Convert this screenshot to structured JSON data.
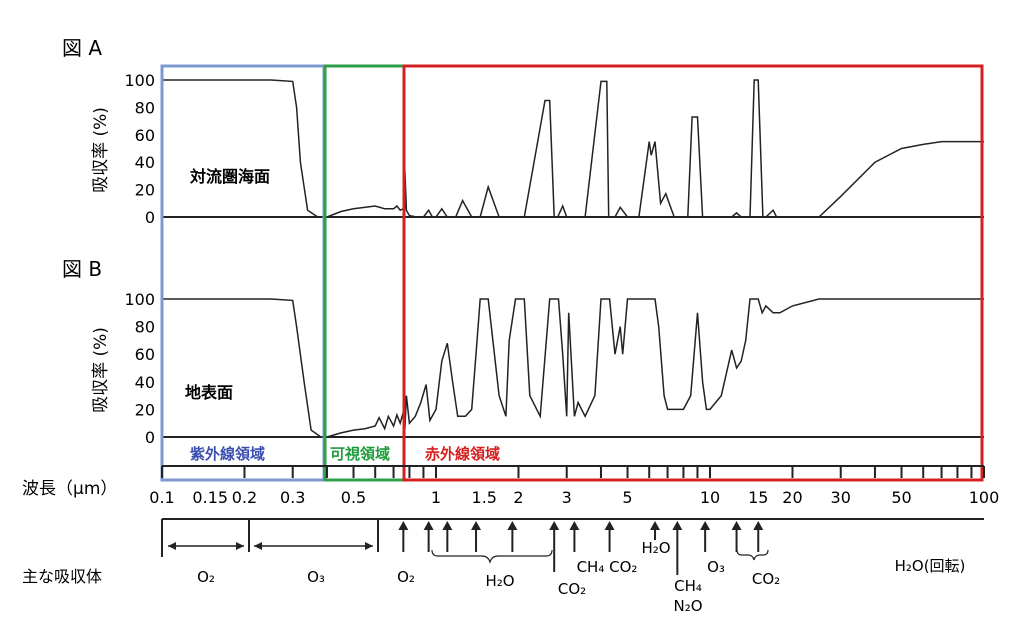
{
  "figure_a": {
    "title": "図 A",
    "ylabel": "吸収率 (%)",
    "label": "対流圏海面"
  },
  "figure_b": {
    "title": "図 B",
    "ylabel": "吸収率 (%)",
    "label": "地表面"
  },
  "regions": {
    "uv": {
      "label": "紫外線領域",
      "color": "#3b4fb0",
      "box_color": "#7c9ad0"
    },
    "visible": {
      "label": "可視領域",
      "color": "#1f9a3a",
      "box_color": "#2e9e4a"
    },
    "ir": {
      "label": "赤外線領域",
      "color": "#d42020",
      "box_color": "#d42020"
    }
  },
  "x_axis_label": "波長（μm）",
  "absorbers_label": "主な吸収体",
  "chart_data": [
    {
      "type": "line",
      "title": "図 A",
      "ylabel": "吸収率 (%)",
      "xlabel": "波長（μm）",
      "xscale": "log",
      "xlim": [
        0.1,
        100
      ],
      "ylim": [
        0,
        100
      ],
      "yticks": [
        0,
        20,
        40,
        60,
        80,
        100
      ],
      "annotation": "対流圏海面",
      "x": [
        0.1,
        0.15,
        0.2,
        0.25,
        0.3,
        0.31,
        0.32,
        0.34,
        0.37,
        0.4,
        0.45,
        0.5,
        0.6,
        0.65,
        0.7,
        0.72,
        0.74,
        0.76,
        0.77,
        0.78,
        0.8,
        0.85,
        0.9,
        0.94,
        0.97,
        1.0,
        1.05,
        1.1,
        1.14,
        1.18,
        1.25,
        1.35,
        1.4,
        1.45,
        1.55,
        1.7,
        1.82,
        1.87,
        1.95,
        2.1,
        2.5,
        2.6,
        2.7,
        2.78,
        2.9,
        3.0,
        3.2,
        3.5,
        4.0,
        4.2,
        4.27,
        4.35,
        4.5,
        4.7,
        5.0,
        5.5,
        6.0,
        6.1,
        6.3,
        6.6,
        6.9,
        7.1,
        7.4,
        7.7,
        8.0,
        8.3,
        8.6,
        9.0,
        9.4,
        9.6,
        9.9,
        10.5,
        12.0,
        12.5,
        13.0,
        14.0,
        14.5,
        15.0,
        15.6,
        16.0,
        17.0,
        17.5,
        18.0,
        20.0,
        22.0,
        25.0,
        30.0,
        40.0,
        50.0,
        60.0,
        70.0,
        100.0
      ],
      "values": [
        100,
        100,
        100,
        100,
        99,
        80,
        40,
        5,
        0,
        0,
        4,
        6,
        8,
        6,
        6,
        8,
        5,
        6,
        34,
        5,
        1,
        0,
        0,
        5,
        0,
        0,
        6,
        0,
        0,
        0,
        12,
        0,
        0,
        0,
        22,
        0,
        0,
        0,
        0,
        0,
        85,
        85,
        0,
        0,
        8,
        0,
        0,
        0,
        99,
        99,
        0,
        0,
        0,
        7,
        0,
        0,
        55,
        45,
        55,
        10,
        17,
        10,
        0,
        0,
        0,
        0,
        73,
        73,
        0,
        0,
        0,
        0,
        0,
        3,
        0,
        0,
        100,
        100,
        0,
        0,
        5,
        0,
        0,
        0,
        0,
        0,
        15,
        40,
        50,
        53,
        55,
        55
      ]
    },
    {
      "type": "line",
      "title": "図 B",
      "ylabel": "吸収率 (%)",
      "xlabel": "波長（μm）",
      "xscale": "log",
      "xlim": [
        0.1,
        100
      ],
      "ylim": [
        0,
        100
      ],
      "yticks": [
        0,
        20,
        40,
        60,
        80,
        100
      ],
      "annotation": "地表面",
      "x": [
        0.1,
        0.15,
        0.2,
        0.25,
        0.3,
        0.31,
        0.33,
        0.35,
        0.38,
        0.4,
        0.45,
        0.5,
        0.55,
        0.6,
        0.62,
        0.65,
        0.67,
        0.7,
        0.72,
        0.74,
        0.76,
        0.77,
        0.78,
        0.8,
        0.84,
        0.88,
        0.92,
        0.95,
        1.0,
        1.05,
        1.1,
        1.15,
        1.2,
        1.28,
        1.35,
        1.4,
        1.45,
        1.55,
        1.7,
        1.8,
        1.85,
        1.95,
        2.1,
        2.2,
        2.4,
        2.6,
        2.7,
        2.8,
        2.9,
        3.0,
        3.05,
        3.2,
        3.3,
        3.5,
        3.8,
        4.0,
        4.3,
        4.5,
        4.7,
        4.8,
        5.0,
        5.2,
        5.5,
        6.0,
        6.3,
        6.5,
        6.8,
        7.0,
        7.2,
        7.5,
        8.0,
        8.5,
        9.0,
        9.4,
        9.7,
        10.0,
        11.0,
        12.0,
        12.5,
        13.0,
        13.5,
        14.0,
        15.0,
        15.5,
        16.0,
        17.0,
        18.0,
        20.0,
        25.0,
        30.0,
        40.0,
        50.0,
        100.0
      ],
      "values": [
        100,
        100,
        100,
        100,
        99,
        80,
        40,
        5,
        0,
        0,
        3,
        5,
        6,
        8,
        14,
        6,
        15,
        8,
        16,
        10,
        18,
        6,
        30,
        10,
        15,
        25,
        38,
        12,
        20,
        55,
        68,
        40,
        15,
        15,
        20,
        60,
        100,
        100,
        30,
        15,
        70,
        100,
        100,
        30,
        15,
        100,
        100,
        100,
        60,
        15,
        90,
        15,
        25,
        15,
        30,
        100,
        100,
        60,
        80,
        60,
        100,
        100,
        100,
        100,
        100,
        80,
        30,
        20,
        20,
        20,
        20,
        30,
        90,
        40,
        20,
        20,
        30,
        63,
        50,
        55,
        70,
        100,
        100,
        90,
        95,
        90,
        90,
        95,
        100,
        100,
        100,
        100,
        100
      ]
    }
  ],
  "x_ticks": {
    "labels": [
      "0.1",
      "0.15",
      "0.2",
      "0.3",
      "0.5",
      "1",
      "1.5",
      "2",
      "3",
      "5",
      "10",
      "15",
      "20",
      "30",
      "50",
      "100"
    ],
    "values": [
      0.1,
      0.15,
      0.2,
      0.3,
      0.5,
      1,
      1.5,
      2,
      3,
      5,
      10,
      15,
      20,
      30,
      50,
      100
    ]
  },
  "absorbers": {
    "uv_range": {
      "label": "O₂"
    },
    "ozone_range": {
      "label": "O₃"
    },
    "o2_visible": {
      "label": "O₂"
    },
    "h2o": {
      "label": "H₂O"
    },
    "co2_27": {
      "label": "CO₂"
    },
    "ch4_co2": {
      "label": "CH₄ CO₂"
    },
    "h2o_6": {
      "label": "H₂O"
    },
    "ch4_n2o": {
      "line1": "CH₄",
      "line2": "N₂O"
    },
    "o3_96": {
      "label": "O₃"
    },
    "co2_15": {
      "label": "CO₂"
    },
    "h2o_rot": {
      "label": "H₂O(回転)"
    }
  }
}
